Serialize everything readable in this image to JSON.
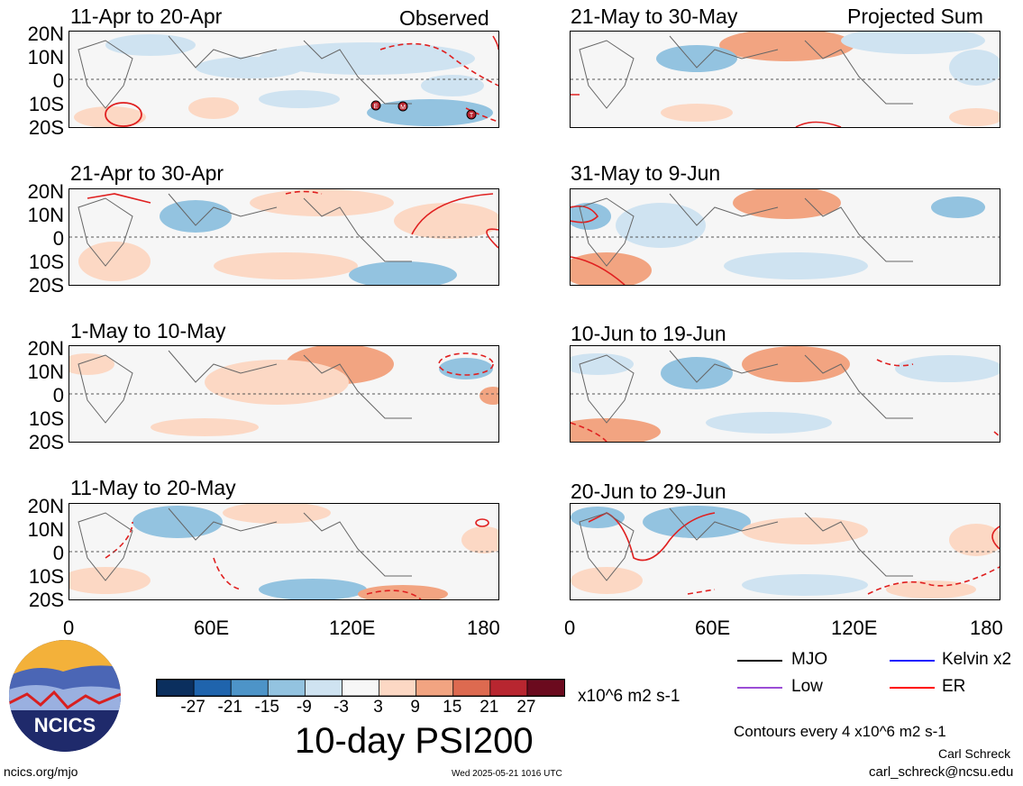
{
  "panels": [
    {
      "title": "11-Apr to 20-Apr",
      "label": "Observed"
    },
    {
      "title": "21-Apr to 30-Apr",
      "label": ""
    },
    {
      "title": "1-May to 10-May",
      "label": ""
    },
    {
      "title": "11-May to 20-May",
      "label": ""
    },
    {
      "title": "21-May to 30-May",
      "label": "Projected Sum"
    },
    {
      "title": "31-May to 9-Jun",
      "label": ""
    },
    {
      "title": "10-Jun to 19-Jun",
      "label": ""
    },
    {
      "title": "20-Jun to 29-Jun",
      "label": ""
    }
  ],
  "lat_ticks": [
    "20N",
    "10N",
    "0",
    "10S",
    "20S"
  ],
  "lon_ticks": [
    "0",
    "60E",
    "120E",
    "180"
  ],
  "markers": [
    "E",
    "M",
    "T"
  ],
  "colorbar": {
    "colors": [
      "#0b2f5e",
      "#1f64ad",
      "#4d94c8",
      "#93c3e0",
      "#cfe3f1",
      "#f7f7f7",
      "#fcd8c4",
      "#f2a481",
      "#dd6a50",
      "#b82630",
      "#6b0a1e"
    ],
    "ticks": [
      "-27",
      "-21",
      "-15",
      "-9",
      "-3",
      "3",
      "9",
      "15",
      "21",
      "27"
    ],
    "units": "x10^6 m2 s-1"
  },
  "legend": [
    {
      "label": "MJO",
      "color": "#000000"
    },
    {
      "label": "Kelvin x2",
      "color": "#1a1aff"
    },
    {
      "label": "Low",
      "color": "#9b4dd6"
    },
    {
      "label": "ER",
      "color": "#ff0000"
    }
  ],
  "main_title": "10-day PSI200",
  "contour_note": "Contours every 4 x10^6 m2 s-1",
  "author": "Carl Schreck",
  "email": "carl_schreck@ncsu.edu",
  "site": "ncics.org/mjo",
  "timestamp": "Wed 2025-05-21 1016 UTC",
  "logo_text": "NCICS"
}
